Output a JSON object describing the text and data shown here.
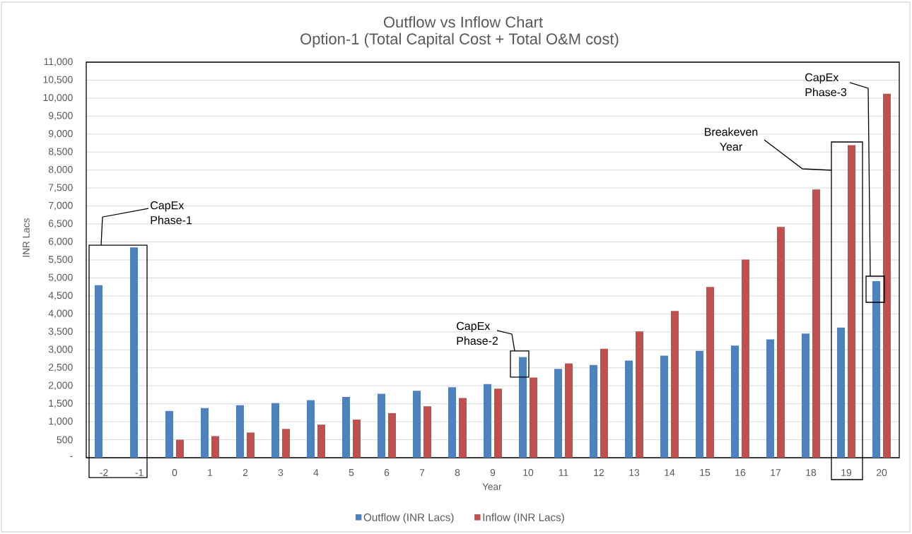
{
  "chart_data": {
    "type": "bar",
    "title": "Outflow vs Inflow Chart",
    "subtitle": "Option-1 (Total Capital Cost + Total O&M cost)",
    "xlabel": "Year",
    "ylabel": "INR Lacs",
    "categories": [
      "-2",
      "-1",
      "0",
      "1",
      "2",
      "3",
      "4",
      "5",
      "6",
      "7",
      "8",
      "9",
      "10",
      "11",
      "12",
      "13",
      "14",
      "15",
      "16",
      "17",
      "18",
      "19",
      "20"
    ],
    "series": [
      {
        "name": "Outflow (INR Lacs)",
        "color": "#4f81bd",
        "values": [
          4800,
          5850,
          1300,
          1380,
          1460,
          1520,
          1600,
          1690,
          1780,
          1860,
          1960,
          2050,
          2800,
          2470,
          2580,
          2700,
          2840,
          2970,
          3120,
          3290,
          3450,
          3620,
          4910
        ]
      },
      {
        "name": "Inflow (INR Lacs)",
        "color": "#c0504d",
        "values": [
          null,
          null,
          500,
          600,
          700,
          800,
          920,
          1060,
          1240,
          1430,
          1660,
          1920,
          2230,
          2620,
          3030,
          3510,
          4080,
          4750,
          5510,
          6420,
          7460,
          8690,
          10120
        ]
      }
    ],
    "ylim": [
      0,
      11000
    ],
    "yticks": [
      {
        "value": 0,
        "label": "-"
      },
      500,
      {
        "value": 1000,
        "label": "1,000"
      },
      {
        "value": 1500,
        "label": "1,500"
      },
      {
        "value": 2000,
        "label": "2,000"
      },
      {
        "value": 2500,
        "label": "2,500"
      },
      {
        "value": 3000,
        "label": "3,000"
      },
      {
        "value": 3500,
        "label": "3,500"
      },
      {
        "value": 4000,
        "label": "4,000"
      },
      {
        "value": 4500,
        "label": "4,500"
      },
      {
        "value": 5000,
        "label": "5,000"
      },
      {
        "value": 5500,
        "label": "5,500"
      },
      {
        "value": 6000,
        "label": "6,000"
      },
      {
        "value": 6500,
        "label": "6,500"
      },
      {
        "value": 7000,
        "label": "7,000"
      },
      {
        "value": 7500,
        "label": "7,500"
      },
      {
        "value": 8000,
        "label": "8,000"
      },
      {
        "value": 8500,
        "label": "8,500"
      },
      {
        "value": 9000,
        "label": "9,000"
      },
      {
        "value": 9500,
        "label": "9,500"
      },
      {
        "value": 10000,
        "label": "10,000"
      },
      {
        "value": 10500,
        "label": "10,500"
      },
      {
        "value": 11000,
        "label": "11,000"
      }
    ],
    "grid": "y",
    "legend": "bottom",
    "annotations": [
      {
        "text": "CapEx Phase-1",
        "x": "-1",
        "y": 5850
      },
      {
        "text": "CapEx Phase-2",
        "x": "10",
        "y": 2800
      },
      "Breakeven Year",
      "CapEx Phase-3"
    ]
  }
}
